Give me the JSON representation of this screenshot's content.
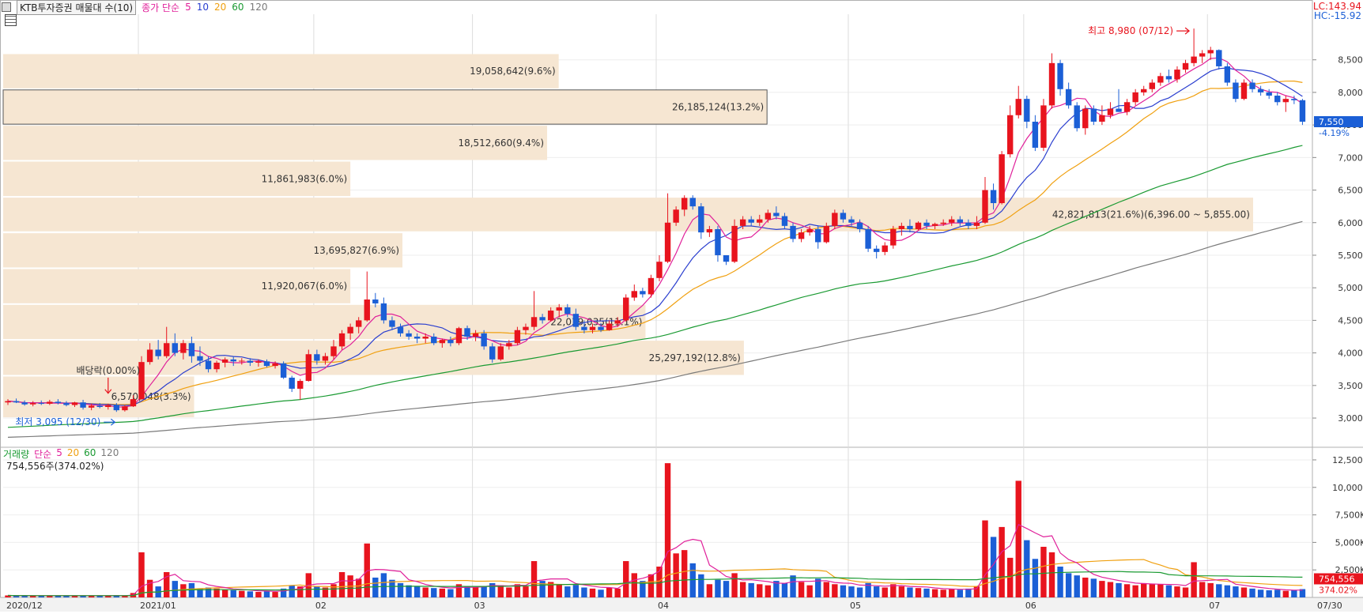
{
  "header": {
    "title": "KTB투자증권 매물대 수(10)",
    "ma_label": "종가 단순",
    "ma_periods": [
      "5",
      "10",
      "20",
      "60",
      "120"
    ]
  },
  "right_info": {
    "lc": "LC:143.94",
    "hc": "HC:-15.92"
  },
  "volume_header": {
    "label": "거래량",
    "ma_label": "단순",
    "ma_periods": [
      "5",
      "20",
      "60",
      "120"
    ],
    "info": "754,556주(374.02%)"
  },
  "colors": {
    "up": "#e8141e",
    "down": "#1b5fd6",
    "ma5": "#e0209a",
    "ma10": "#2a3ecf",
    "ma20": "#f0a010",
    "ma60": "#1a9a32",
    "ma120": "#7a7a7a",
    "profile_fill": "#f6e6d2",
    "current_price": "#1b5fd6"
  },
  "chart_data": {
    "type": "candlestick",
    "price_axis": {
      "ticks": [
        "3,000",
        "3,500",
        "4,000",
        "4,500",
        "5,000",
        "5,500",
        "6,000",
        "6,500",
        "7,000",
        "7,500",
        "8,000",
        "8,500"
      ],
      "range": [
        2600,
        9200
      ]
    },
    "volume_axis": {
      "ticks": [
        "2,500K",
        "5,000K",
        "7,500K",
        "10,000K",
        "12,500K"
      ],
      "range": [
        0,
        13000
      ]
    },
    "x_labels": [
      "2020/12",
      "2021/01",
      "02",
      "03",
      "04",
      "05",
      "06",
      "07",
      "07/30"
    ],
    "current_price": {
      "value": "7,550",
      "change": "-4.19%"
    },
    "current_volume": {
      "value": "754,556",
      "change": "374.02%"
    },
    "annotations": {
      "high": "최고 8,980 (07/12)",
      "low": "최저 3,095 (12/30)",
      "dividend": "배당락(0.00%)"
    },
    "volume_profile": [
      {
        "label": "6,570,048(3.3%)",
        "low": 3000,
        "high": 3650,
        "pct": 3.3
      },
      {
        "label": "25,297,192(12.8%)",
        "low": 3650,
        "high": 4200,
        "pct": 12.8
      },
      {
        "label": "22,039,035(11.1%)",
        "low": 4200,
        "high": 4750,
        "pct": 11.1
      },
      {
        "label": "11,920,067(6.0%)",
        "low": 4750,
        "high": 5300,
        "pct": 6.0
      },
      {
        "label": "13,695,827(6.9%)",
        "low": 5300,
        "high": 5850,
        "pct": 6.9
      },
      {
        "label": "42,821,813(21.6%)(6,396.00 ~ 5,855.00)",
        "low": 5855,
        "high": 6396,
        "pct": 21.6
      },
      {
        "label": "11,861,983(6.0%)",
        "low": 6396,
        "high": 6950,
        "pct": 6.0
      },
      {
        "label": "18,512,660(9.4%)",
        "low": 6950,
        "high": 7500,
        "pct": 9.4
      },
      {
        "label": "26,185,124(13.2%)",
        "low": 7500,
        "high": 8050,
        "pct": 13.2,
        "highlight": true
      },
      {
        "label": "19,058,642(9.6%)",
        "low": 8050,
        "high": 8600,
        "pct": 9.6
      }
    ],
    "candles": [
      [
        3240,
        3290,
        3200,
        3260,
        180
      ],
      [
        3260,
        3300,
        3230,
        3240,
        150
      ],
      [
        3240,
        3270,
        3190,
        3210,
        160
      ],
      [
        3210,
        3260,
        3180,
        3230,
        140
      ],
      [
        3230,
        3270,
        3200,
        3220,
        150
      ],
      [
        3220,
        3280,
        3200,
        3250,
        170
      ],
      [
        3250,
        3290,
        3210,
        3230,
        160
      ],
      [
        3230,
        3260,
        3180,
        3200,
        150
      ],
      [
        3200,
        3250,
        3170,
        3240,
        140
      ],
      [
        3240,
        3280,
        3130,
        3160,
        180
      ],
      [
        3160,
        3220,
        3120,
        3190,
        150
      ],
      [
        3190,
        3230,
        3150,
        3170,
        140
      ],
      [
        3170,
        3220,
        3130,
        3200,
        150
      ],
      [
        3200,
        3230,
        3095,
        3120,
        200
      ],
      [
        3120,
        3200,
        3100,
        3180,
        160
      ],
      [
        3180,
        3350,
        3170,
        3290,
        400
      ],
      [
        3290,
        3950,
        3280,
        3860,
        4100
      ],
      [
        3860,
        4150,
        3820,
        4050,
        1600
      ],
      [
        4050,
        4200,
        3900,
        3950,
        1000
      ],
      [
        3950,
        4400,
        3920,
        4150,
        2300
      ],
      [
        4150,
        4300,
        3950,
        4000,
        1500
      ],
      [
        4000,
        4200,
        3900,
        4150,
        1200
      ],
      [
        4150,
        4250,
        3850,
        3950,
        1300
      ],
      [
        3950,
        4100,
        3800,
        3880,
        800
      ],
      [
        3880,
        3950,
        3700,
        3750,
        900
      ],
      [
        3750,
        3880,
        3700,
        3850,
        800
      ],
      [
        3850,
        3930,
        3780,
        3900,
        700
      ],
      [
        3900,
        3950,
        3800,
        3870,
        650
      ],
      [
        3870,
        3920,
        3820,
        3880,
        600
      ],
      [
        3880,
        3920,
        3800,
        3850,
        550
      ],
      [
        3850,
        3900,
        3790,
        3870,
        500
      ],
      [
        3870,
        3900,
        3780,
        3800,
        600
      ],
      [
        3800,
        3870,
        3760,
        3840,
        500
      ],
      [
        3840,
        3870,
        3600,
        3620,
        800
      ],
      [
        3620,
        3650,
        3400,
        3450,
        1100
      ],
      [
        3450,
        3600,
        3280,
        3570,
        1000
      ],
      [
        3570,
        4050,
        3560,
        3980,
        2200
      ],
      [
        3980,
        4050,
        3820,
        3880,
        1000
      ],
      [
        3880,
        4000,
        3820,
        3950,
        900
      ],
      [
        3950,
        4200,
        3900,
        4100,
        1200
      ],
      [
        4100,
        4350,
        4050,
        4300,
        2300
      ],
      [
        4300,
        4450,
        4200,
        4400,
        2000
      ],
      [
        4400,
        4550,
        4300,
        4500,
        1700
      ],
      [
        4500,
        5250,
        4480,
        4820,
        4900
      ],
      [
        4820,
        4920,
        4700,
        4760,
        1800
      ],
      [
        4760,
        4850,
        4450,
        4500,
        2200
      ],
      [
        4500,
        4560,
        4350,
        4400,
        1600
      ],
      [
        4400,
        4450,
        4250,
        4300,
        1300
      ],
      [
        4300,
        4350,
        4200,
        4250,
        1100
      ],
      [
        4250,
        4300,
        4150,
        4220,
        1000
      ],
      [
        4220,
        4300,
        4150,
        4250,
        900
      ],
      [
        4250,
        4300,
        4120,
        4150,
        850
      ],
      [
        4150,
        4220,
        4080,
        4200,
        800
      ],
      [
        4200,
        4250,
        4100,
        4150,
        750
      ],
      [
        4150,
        4400,
        4120,
        4380,
        1200
      ],
      [
        4380,
        4420,
        4200,
        4250,
        1000
      ],
      [
        4250,
        4350,
        4180,
        4300,
        900
      ],
      [
        4300,
        4350,
        4050,
        4100,
        1000
      ],
      [
        4100,
        4150,
        3850,
        3900,
        1300
      ],
      [
        3900,
        4150,
        3880,
        4100,
        1100
      ],
      [
        4100,
        4200,
        4050,
        4150,
        900
      ],
      [
        4150,
        4400,
        4120,
        4350,
        1200
      ],
      [
        4350,
        4450,
        4280,
        4400,
        1000
      ],
      [
        4400,
        4950,
        4350,
        4550,
        3300
      ],
      [
        4550,
        4600,
        4450,
        4500,
        1500
      ],
      [
        4500,
        4700,
        4480,
        4650,
        1400
      ],
      [
        4650,
        4750,
        4550,
        4700,
        1200
      ],
      [
        4700,
        4750,
        4550,
        4600,
        1000
      ],
      [
        4600,
        4680,
        4350,
        4400,
        1200
      ],
      [
        4400,
        4500,
        4300,
        4350,
        900
      ],
      [
        4350,
        4450,
        4300,
        4400,
        800
      ],
      [
        4400,
        4460,
        4320,
        4350,
        700
      ],
      [
        4350,
        4500,
        4340,
        4450,
        900
      ],
      [
        4450,
        4550,
        4400,
        4500,
        800
      ],
      [
        4500,
        4900,
        4480,
        4850,
        3300
      ],
      [
        4850,
        5050,
        4800,
        4950,
        2200
      ],
      [
        4950,
        5000,
        4850,
        4900,
        1500
      ],
      [
        4900,
        5200,
        4850,
        5150,
        2100
      ],
      [
        5150,
        5500,
        5100,
        5400,
        2800
      ],
      [
        5400,
        6450,
        5380,
        6000,
        12200
      ],
      [
        6000,
        6250,
        5950,
        6200,
        4000
      ],
      [
        6200,
        6420,
        6100,
        6380,
        4300
      ],
      [
        6380,
        6420,
        6200,
        6250,
        3100
      ],
      [
        6250,
        6300,
        5750,
        5850,
        2100
      ],
      [
        5850,
        5950,
        5780,
        5900,
        1200
      ],
      [
        5900,
        5950,
        5400,
        5500,
        1600
      ],
      [
        5500,
        5500,
        5350,
        5400,
        1500
      ],
      [
        5400,
        6050,
        5380,
        5950,
        2200
      ],
      [
        5950,
        6100,
        5900,
        6050,
        1400
      ],
      [
        6050,
        6100,
        5950,
        6000,
        1300
      ],
      [
        6000,
        6120,
        5950,
        6050,
        1200
      ],
      [
        6050,
        6200,
        6000,
        6150,
        1100
      ],
      [
        6150,
        6250,
        6050,
        6100,
        1500
      ],
      [
        6100,
        6150,
        5900,
        5950,
        1300
      ],
      [
        5950,
        6000,
        5700,
        5750,
        2000
      ],
      [
        5750,
        5900,
        5700,
        5850,
        1400
      ],
      [
        5850,
        5950,
        5800,
        5900,
        1100
      ],
      [
        5900,
        5960,
        5600,
        5700,
        1700
      ],
      [
        5700,
        6000,
        5680,
        5950,
        1400
      ],
      [
        5950,
        6200,
        5900,
        6150,
        1200
      ],
      [
        6150,
        6200,
        6000,
        6050,
        1100
      ],
      [
        6050,
        6100,
        5950,
        6000,
        1000
      ],
      [
        6000,
        6050,
        5850,
        5900,
        900
      ],
      [
        5900,
        5950,
        5550,
        5600,
        1300
      ],
      [
        5600,
        5650,
        5450,
        5550,
        1000
      ],
      [
        5550,
        5700,
        5500,
        5650,
        900
      ],
      [
        5650,
        5950,
        5600,
        5900,
        1200
      ],
      [
        5900,
        6000,
        5800,
        5950,
        1000
      ],
      [
        5950,
        6050,
        5850,
        5900,
        900
      ],
      [
        5900,
        6020,
        5880,
        6000,
        850
      ],
      [
        6000,
        6050,
        5900,
        5950,
        800
      ],
      [
        5950,
        6000,
        5900,
        5980,
        750
      ],
      [
        5980,
        6050,
        5950,
        6000,
        700
      ],
      [
        6000,
        6100,
        5950,
        6050,
        750
      ],
      [
        6050,
        6100,
        5950,
        6000,
        700
      ],
      [
        6000,
        6050,
        5900,
        5950,
        800
      ],
      [
        5950,
        6100,
        5900,
        6000,
        1000
      ],
      [
        6000,
        6700,
        5980,
        6500,
        7000
      ],
      [
        6500,
        6600,
        6200,
        6300,
        5500
      ],
      [
        6300,
        7100,
        6280,
        7050,
        6400
      ],
      [
        7050,
        7800,
        7000,
        7650,
        3600
      ],
      [
        7650,
        8100,
        7600,
        7900,
        10600
      ],
      [
        7900,
        7950,
        7450,
        7550,
        5200
      ],
      [
        7550,
        7650,
        7100,
        7150,
        3500
      ],
      [
        7150,
        7900,
        7100,
        7800,
        4600
      ],
      [
        7800,
        8600,
        7750,
        8450,
        4100
      ],
      [
        8450,
        8500,
        7950,
        8050,
        2800
      ],
      [
        8050,
        8150,
        7750,
        7800,
        2200
      ],
      [
        7800,
        7850,
        7400,
        7450,
        2000
      ],
      [
        7450,
        7800,
        7350,
        7750,
        1800
      ],
      [
        7750,
        7800,
        7500,
        7550,
        1700
      ],
      [
        7550,
        7800,
        7500,
        7650,
        1500
      ],
      [
        7650,
        7850,
        7600,
        7750,
        1400
      ],
      [
        7750,
        8050,
        7700,
        7700,
        1300
      ],
      [
        7700,
        7900,
        7650,
        7850,
        1200
      ],
      [
        7850,
        8050,
        7800,
        8000,
        1100
      ],
      [
        8000,
        8100,
        7950,
        8050,
        1300
      ],
      [
        8050,
        8200,
        8000,
        8150,
        1200
      ],
      [
        8150,
        8300,
        8100,
        8250,
        1200
      ],
      [
        8250,
        8350,
        8150,
        8200,
        1100
      ],
      [
        8200,
        8400,
        8150,
        8350,
        1000
      ],
      [
        8350,
        8500,
        8300,
        8450,
        900
      ],
      [
        8450,
        8980,
        8400,
        8550,
        3200
      ],
      [
        8550,
        8650,
        8450,
        8600,
        1400
      ],
      [
        8600,
        8700,
        8500,
        8650,
        1300
      ],
      [
        8650,
        8660,
        8350,
        8400,
        1200
      ],
      [
        8400,
        8450,
        8100,
        8150,
        1100
      ],
      [
        8150,
        8200,
        7850,
        7900,
        1000
      ],
      [
        7900,
        8200,
        7880,
        8150,
        900
      ],
      [
        8150,
        8200,
        8000,
        8050,
        800
      ],
      [
        8050,
        8100,
        7950,
        8000,
        700
      ],
      [
        8000,
        8050,
        7900,
        7950,
        650
      ],
      [
        7950,
        8000,
        7800,
        7850,
        700
      ],
      [
        7850,
        7950,
        7700,
        7900,
        600
      ],
      [
        7900,
        7950,
        7820,
        7880,
        650
      ],
      [
        7880,
        7900,
        7500,
        7550,
        755
      ]
    ]
  }
}
